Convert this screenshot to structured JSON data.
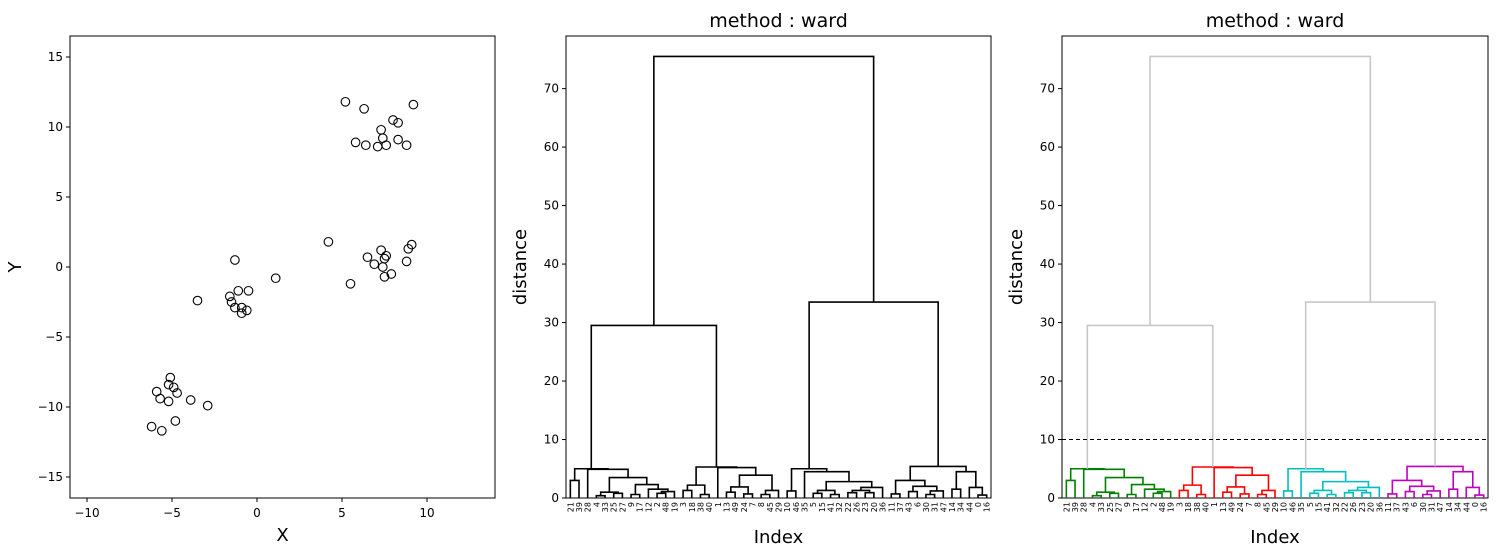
{
  "chart_data": [
    {
      "type": "scatter",
      "title": "",
      "xlabel": "X",
      "ylabel": "Y",
      "xlim": [
        -11,
        14
      ],
      "ylim": [
        -16.5,
        16.5
      ],
      "xticks": [
        -10,
        -5,
        0,
        5,
        10
      ],
      "yticks": [
        -15,
        -10,
        -5,
        0,
        5,
        10,
        15
      ],
      "marker": "open circle",
      "grid": false,
      "points": [
        [
          5.2,
          11.8
        ],
        [
          6.3,
          11.3
        ],
        [
          9.2,
          11.6
        ],
        [
          8.0,
          10.5
        ],
        [
          8.3,
          10.3
        ],
        [
          7.3,
          9.8
        ],
        [
          7.4,
          9.2
        ],
        [
          8.3,
          9.1
        ],
        [
          5.8,
          8.9
        ],
        [
          6.4,
          8.7
        ],
        [
          7.1,
          8.6
        ],
        [
          7.6,
          8.7
        ],
        [
          8.8,
          8.7
        ],
        [
          4.2,
          1.8
        ],
        [
          7.3,
          1.2
        ],
        [
          9.1,
          1.6
        ],
        [
          8.9,
          1.3
        ],
        [
          6.5,
          0.7
        ],
        [
          7.6,
          0.8
        ],
        [
          7.5,
          0.6
        ],
        [
          6.9,
          0.2
        ],
        [
          7.4,
          0.0
        ],
        [
          8.8,
          0.4
        ],
        [
          7.9,
          -0.5
        ],
        [
          7.5,
          -0.7
        ],
        [
          5.5,
          -1.2
        ],
        [
          -1.3,
          0.5
        ],
        [
          1.1,
          -0.8
        ],
        [
          -1.1,
          -1.7
        ],
        [
          -0.5,
          -1.7
        ],
        [
          -1.6,
          -2.1
        ],
        [
          -1.5,
          -2.5
        ],
        [
          -3.5,
          -2.4
        ],
        [
          -1.3,
          -2.9
        ],
        [
          -0.9,
          -2.9
        ],
        [
          -0.6,
          -3.1
        ],
        [
          -0.9,
          -3.3
        ],
        [
          -5.1,
          -7.9
        ],
        [
          -5.2,
          -8.4
        ],
        [
          -4.9,
          -8.6
        ],
        [
          -5.9,
          -8.9
        ],
        [
          -4.7,
          -9.0
        ],
        [
          -5.7,
          -9.4
        ],
        [
          -3.9,
          -9.5
        ],
        [
          -5.2,
          -9.6
        ],
        [
          -2.9,
          -9.9
        ],
        [
          -4.8,
          -11.0
        ],
        [
          -6.2,
          -11.4
        ],
        [
          -5.6,
          -11.7
        ]
      ]
    },
    {
      "type": "dendrogram",
      "title": "method : ward",
      "xlabel": "Index",
      "ylabel": "distance",
      "ylim": [
        0,
        79
      ],
      "yticks": [
        0,
        10,
        20,
        30,
        40,
        50,
        60,
        70
      ],
      "leaf_labels": [
        "21",
        "39",
        "28",
        "4",
        "33",
        "25",
        "27",
        "9",
        "17",
        "12",
        "2",
        "48",
        "19",
        "3",
        "18",
        "38",
        "40",
        "1",
        "13",
        "49",
        "24",
        "7",
        "8",
        "45",
        "29",
        "10",
        "46",
        "35",
        "5",
        "15",
        "41",
        "32",
        "22",
        "26",
        "23",
        "20",
        "36",
        "11",
        "37",
        "43",
        "6",
        "30",
        "31",
        "47",
        "14",
        "34",
        "44",
        "0",
        "16"
      ],
      "color": "#000000",
      "merges": [
        {
          "a": "leaf:0",
          "b": "leaf:1",
          "h": 3.0
        },
        {
          "a": "leaf:3",
          "b": "leaf:4",
          "h": 0.4
        },
        {
          "a": "leaf:5",
          "b": "leaf:6",
          "h": 0.8
        },
        {
          "a": "m1",
          "b": "m2",
          "h": 1.0
        },
        {
          "a": "leaf:7",
          "b": "leaf:8",
          "h": 0.6
        },
        {
          "a": "leaf:10",
          "b": "leaf:11",
          "h": 0.8
        },
        {
          "a": "m5",
          "b": "leaf:12",
          "h": 1.1
        },
        {
          "a": "leaf:9",
          "b": "m6",
          "h": 1.5
        },
        {
          "a": "m4",
          "b": "m7",
          "h": 2.3
        },
        {
          "a": "m3",
          "b": "m8",
          "h": 3.5
        },
        {
          "a": "leaf:2",
          "b": "m9",
          "h": 4.9
        },
        {
          "a": "m0",
          "b": "m10",
          "h": 5.0
        },
        {
          "a": "leaf:13",
          "b": "leaf:14",
          "h": 1.3
        },
        {
          "a": "leaf:15",
          "b": "leaf:16",
          "h": 0.6
        },
        {
          "a": "m12",
          "b": "m13",
          "h": 2.2
        },
        {
          "a": "leaf:18",
          "b": "leaf:19",
          "h": 1.0
        },
        {
          "a": "leaf:20",
          "b": "leaf:21",
          "h": 0.7
        },
        {
          "a": "m15",
          "b": "m16",
          "h": 1.9
        },
        {
          "a": "leaf:22",
          "b": "leaf:23",
          "h": 0.6
        },
        {
          "a": "m18",
          "b": "leaf:24",
          "h": 1.3
        },
        {
          "a": "m17",
          "b": "m19",
          "h": 3.9
        },
        {
          "a": "leaf:17",
          "b": "m20",
          "h": 5.2
        },
        {
          "a": "m14",
          "b": "m21",
          "h": 5.3
        },
        {
          "a": "m11",
          "b": "m22",
          "h": 29.5
        },
        {
          "a": "leaf:25",
          "b": "leaf:26",
          "h": 1.2
        },
        {
          "a": "leaf:28",
          "b": "leaf:29",
          "h": 0.8
        },
        {
          "a": "leaf:30",
          "b": "leaf:31",
          "h": 0.6
        },
        {
          "a": "m25",
          "b": "m26",
          "h": 1.3
        },
        {
          "a": "leaf:32",
          "b": "leaf:33",
          "h": 0.9
        },
        {
          "a": "leaf:34",
          "b": "leaf:35",
          "h": 0.9
        },
        {
          "a": "m28",
          "b": "m29",
          "h": 1.3
        },
        {
          "a": "m30",
          "b": "leaf:36",
          "h": 1.8
        },
        {
          "a": "m27",
          "b": "m31",
          "h": 2.8
        },
        {
          "a": "leaf:27",
          "b": "m32",
          "h": 4.5
        },
        {
          "a": "m24",
          "b": "m33",
          "h": 5.0
        },
        {
          "a": "leaf:37",
          "b": "leaf:38",
          "h": 0.7
        },
        {
          "a": "leaf:39",
          "b": "leaf:40",
          "h": 1.1
        },
        {
          "a": "leaf:41",
          "b": "leaf:42",
          "h": 0.6
        },
        {
          "a": "m37",
          "b": "leaf:43",
          "h": 1.2
        },
        {
          "a": "m36",
          "b": "m38",
          "h": 2.0
        },
        {
          "a": "m35",
          "b": "m39",
          "h": 3.0
        },
        {
          "a": "leaf:44",
          "b": "leaf:45",
          "h": 1.5
        },
        {
          "a": "leaf:47",
          "b": "leaf:48",
          "h": 0.5
        },
        {
          "a": "leaf:46",
          "b": "m42",
          "h": 1.8
        },
        {
          "a": "m41",
          "b": "m43",
          "h": 4.5
        },
        {
          "a": "m40",
          "b": "m44",
          "h": 5.4
        },
        {
          "a": "m34",
          "b": "m45",
          "h": 33.5
        },
        {
          "a": "m23",
          "b": "m46",
          "h": 75.5
        }
      ]
    },
    {
      "type": "dendrogram",
      "title": "method : ward",
      "xlabel": "Index",
      "ylabel": "distance",
      "ylim": [
        0,
        79
      ],
      "yticks": [
        0,
        10,
        20,
        30,
        40,
        50,
        60,
        70
      ],
      "cut_height": 10,
      "cut_line_color": "#000000",
      "above_cut_color": "#c8c8c8",
      "cluster_colors": [
        "#008000",
        "#ff0000",
        "#00bfbf",
        "#bf00bf"
      ],
      "cluster_leaf_ranges": [
        [
          0,
          12
        ],
        [
          13,
          24
        ],
        [
          25,
          36
        ],
        [
          37,
          48
        ]
      ],
      "leaf_labels_same_as": "chart_data.1.leaf_labels",
      "merges_same_as": "chart_data.1.merges"
    }
  ]
}
